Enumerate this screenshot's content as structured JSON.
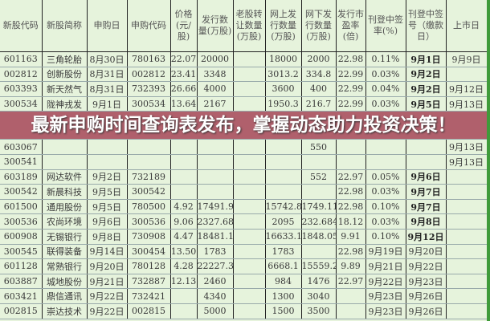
{
  "columns": [
    "新股代码",
    "新股简称",
    "申购日",
    "申购代码",
    "价格(元/股)",
    "发行数量(万股)",
    "老股转让数量(万股)",
    "网上发行数量(万股)",
    "网下发行数量(万股)",
    "发行市盈率(倍)",
    "刊登中签率(%)",
    "刊登中签号（缴款日）",
    "上市日"
  ],
  "rows": [
    [
      "601163",
      "三角轮胎",
      "8月30日",
      "780163",
      "22.07",
      "20000",
      "",
      "18000",
      "2000",
      "22.98",
      "0.11%",
      "9月1日",
      "9月9日"
    ],
    [
      "002812",
      "创新股份",
      "8月31日",
      "002812",
      "23.41",
      "3348",
      "",
      "3013.2",
      "334.8",
      "22.99",
      "0.03%",
      "9月2日",
      ""
    ],
    [
      "603393",
      "新天然气",
      "8月31日",
      "732393",
      "26.66",
      "4000",
      "",
      "3600",
      "400",
      "22.99",
      "0.04%",
      "9月2日",
      "9月12日"
    ],
    [
      "300534",
      "陇神戎发",
      "9月1日",
      "300534",
      "13.64",
      "2167",
      "",
      "1950.3",
      "216.7",
      "22.99",
      "0.03%",
      "9月5日",
      "9月13日"
    ],
    [
      "603067",
      "",
      "",
      "",
      "",
      "",
      "",
      "",
      "550",
      "",
      "",
      "",
      "9月13日"
    ],
    [
      "300541",
      "",
      "",
      "",
      "",
      "",
      "",
      "",
      "",
      "",
      "",
      "",
      "9月13日"
    ],
    [
      "603189",
      "网达软件",
      "9月2日",
      "732189",
      "",
      "",
      "",
      "",
      "552",
      "22.97",
      "0.05%",
      "9月6日",
      ""
    ],
    [
      "300542",
      "新晨科技",
      "9月5日",
      "300542",
      "",
      "",
      "",
      "",
      "",
      "22.98",
      "0.03%",
      "9月7日",
      ""
    ],
    [
      "601500",
      "通用股份",
      "9月5日",
      "780500",
      "4.92",
      "17491.9",
      "",
      "15742.8",
      "1749.11",
      "22.98",
      "0.10%",
      "9月7日",
      ""
    ],
    [
      "300536",
      "农尚环境",
      "9月6日",
      "300536",
      "9.06",
      "2327.68",
      "",
      "2095",
      "232.684",
      "18.12",
      "0.03%",
      "9月8日",
      ""
    ],
    [
      "600908",
      "无锡银行",
      "9月8日",
      "730908",
      "4.47",
      "18481.1",
      "",
      "16633.1",
      "1848.05",
      "9.91",
      "0.10%",
      "9月12日",
      ""
    ],
    [
      "300545",
      "联得装备",
      "9月14日",
      "300454",
      "13.50",
      "1783",
      "",
      "1783",
      "",
      "22.98",
      "9月19日",
      "9月20日",
      ""
    ],
    [
      "601128",
      "常熟银行",
      "9月20日",
      "780128",
      "4.28",
      "22227.3",
      "",
      "6668.1",
      "15559.2",
      "9.89",
      "9月21日",
      "9月22日",
      ""
    ],
    [
      "603887",
      "城地股份",
      "9月21日",
      "732887",
      "12.13",
      "2460",
      "",
      "984",
      "1476",
      "22.97",
      "9月22日",
      "9月23日",
      ""
    ],
    [
      "603421",
      "鼎信通讯",
      "9月22日",
      "732421",
      "",
      "4340",
      "",
      "1300",
      "3040",
      "",
      "9月23日",
      "9月26日",
      ""
    ],
    [
      "002815",
      "崇达技术",
      "9月22日",
      "002815",
      "",
      "5000",
      "",
      "1500",
      "3500",
      "",
      "9月23日",
      "9月26日",
      ""
    ]
  ],
  "banner": {
    "line1": "最新申购时间查询表发布，掌握动态助",
    "line2": "力投资决策！"
  },
  "colors": {
    "sheet_bg": "#e6f3dc",
    "banner": "#96283c",
    "border_accent": "#3f9b3a"
  }
}
